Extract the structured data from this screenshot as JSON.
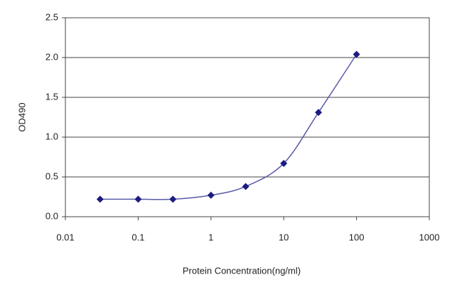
{
  "chart_data": {
    "type": "line",
    "xlabel": "Protein Concentration(ng/ml)",
    "ylabel": "OD490",
    "xscale": "log",
    "x": [
      0.03,
      0.1,
      0.3,
      1,
      3,
      10,
      30,
      100
    ],
    "series": [
      {
        "color": "#5a5aa8",
        "marker_color": "#1c1c80",
        "values": [
          0.22,
          0.22,
          0.22,
          0.27,
          0.38,
          0.67,
          1.31,
          2.04
        ]
      }
    ],
    "xlim": [
      0.01,
      1000
    ],
    "xticks": [
      0.01,
      0.1,
      1,
      10,
      100,
      1000
    ],
    "ylim": [
      0,
      2.5
    ],
    "yticks": [
      {
        "value": 0,
        "label": "0.0"
      },
      0.5,
      {
        "value": 1,
        "label": "1.0"
      },
      1.5,
      {
        "value": 2,
        "label": "2.0"
      },
      2.5
    ],
    "grid": true
  }
}
